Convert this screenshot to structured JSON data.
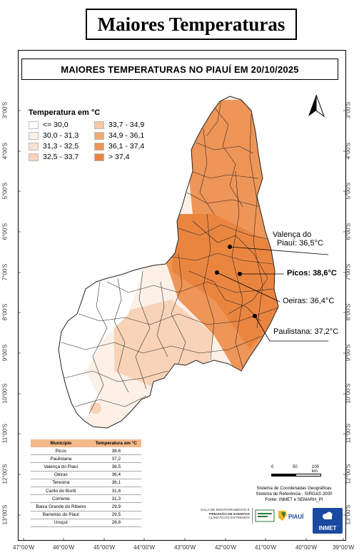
{
  "header": {
    "title": "Maiores Temperaturas"
  },
  "map": {
    "title": "MAIORES TEMPERATURAS NO PIAUÍ EM 20/10/2025"
  },
  "axes": {
    "lat_left": [
      "3°00'S",
      "4°00'S",
      "5°00'S",
      "6°00'S",
      "7°00'S",
      "8°00'S",
      "9°00'S",
      "10°00'S",
      "11°00'S",
      "12°00'S",
      "13°00'S"
    ],
    "lat_right": [
      "3°00'S",
      "4°00'S",
      "5°00'S",
      "6°00'S",
      "7°00'S",
      "8°00'S",
      "9°00'S",
      "10°00'S",
      "11°00'S",
      "12°00'S",
      "13°00'S"
    ],
    "lon": [
      "47°00'W",
      "46°00'W",
      "45°00'W",
      "44°00'W",
      "43°00'W",
      "42°00'W",
      "41°00'W",
      "40°00'W",
      "39°00'W"
    ]
  },
  "legend": {
    "title": "Temperatura em °C",
    "items": [
      {
        "label": "<= 30,0",
        "color": "#ffffff"
      },
      {
        "label": "33,7 - 34,9",
        "color": "#f5c7a3"
      },
      {
        "label": "30,0 - 31,3",
        "color": "#fdf0e6"
      },
      {
        "label": "34,9 - 36,1",
        "color": "#f2aa74"
      },
      {
        "label": "31,3 - 32,5",
        "color": "#fbe1cf"
      },
      {
        "label": "36,1 - 37,4",
        "color": "#ee9558"
      },
      {
        "label": "32,5 - 33,7",
        "color": "#f8d3b8"
      },
      {
        "label": "> 37,4",
        "color": "#ea8540"
      }
    ]
  },
  "callouts": [
    {
      "line1": "Valença do",
      "line2": "Piauí: 36,5°C"
    },
    {
      "line1": "Picos: 38,6°C"
    },
    {
      "line1": "Oeiras: 36,4°C"
    },
    {
      "line1": "Paulistana: 37,2°C"
    }
  ],
  "table": {
    "headers": [
      "Município",
      "Temperatura em °C"
    ],
    "rows": [
      [
        "Picos",
        "38,6"
      ],
      [
        "Paulistana",
        "37,2"
      ],
      [
        "Valença do Piauí",
        "36,5"
      ],
      [
        "Oeiras",
        "36,4"
      ],
      [
        "Teresina",
        "36,1"
      ],
      [
        "Canto do Buriti",
        "31,8"
      ],
      [
        "Corrente",
        "31,3"
      ],
      [
        "Baixa Grande do Ribeiro",
        "29,9"
      ],
      [
        "Barreiras do Piauí",
        "29,5"
      ],
      [
        "Uruçuí",
        "28,8"
      ]
    ]
  },
  "scale": {
    "labels": [
      "0",
      "50",
      "100 km"
    ]
  },
  "credits": [
    "Sistema de Coordenadas Geográficas",
    "Sistema de Referência - SIRGAS 2000",
    "Fonte: INMET e SEMARH_PI"
  ],
  "logos": {
    "sala": [
      "SALA DE MONITORAMENTO E",
      "PREVISÃO DE EVENTOS",
      "CLIMÁTICOS EXTREMOS"
    ],
    "piaui": "PIAUÍ",
    "inmet": "INMET"
  }
}
